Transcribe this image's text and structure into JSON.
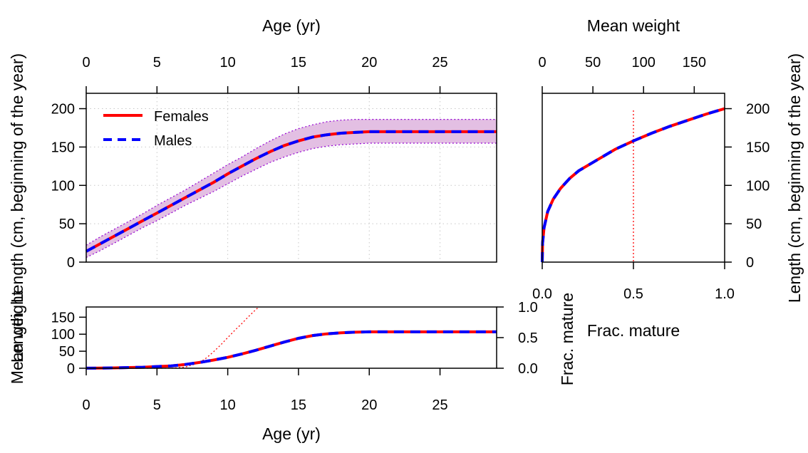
{
  "colors": {
    "females": "#ff0000",
    "males": "#0000ff",
    "band_fill": "#e3bfe3",
    "band_line": "#9400d3",
    "grid": "#c8c8c8"
  },
  "legend": {
    "females": "Females",
    "males": "Males"
  },
  "chart_data": [
    {
      "id": "length_at_age",
      "type": "line",
      "title": "",
      "xlabel_top": "Age (yr)",
      "ylabel_left": "Length (cm, beginning of the year)",
      "xlim": [
        0,
        29
      ],
      "ylim": [
        0,
        220
      ],
      "xticks": [
        "0",
        "5",
        "10",
        "15",
        "20",
        "25"
      ],
      "xtick_values": [
        0,
        5,
        10,
        15,
        20,
        25
      ],
      "yticks": [
        "0",
        "50",
        "100",
        "150",
        "200"
      ],
      "ytick_values": [
        0,
        50,
        100,
        150,
        200
      ],
      "grid": true,
      "legend_position": "top-left",
      "x": [
        0,
        1,
        2,
        3,
        4,
        5,
        6,
        7,
        8,
        9,
        10,
        11,
        12,
        13,
        14,
        15,
        16,
        17,
        18,
        19,
        20,
        21,
        22,
        23,
        24,
        25,
        26,
        27,
        28,
        29
      ],
      "series": [
        {
          "name": "Females",
          "values": [
            14,
            24,
            34,
            44,
            54,
            64,
            74,
            84,
            94,
            104,
            115,
            125,
            135,
            144,
            152,
            158,
            163,
            166,
            168,
            169,
            170,
            170,
            170,
            170,
            170,
            170,
            170,
            170,
            170,
            170
          ]
        },
        {
          "name": "Males",
          "values": [
            14,
            24,
            34,
            44,
            54,
            64,
            74,
            84,
            94,
            104,
            115,
            125,
            135,
            144,
            152,
            158,
            163,
            166,
            168,
            169,
            170,
            170,
            170,
            170,
            170,
            170,
            170,
            170,
            170,
            170
          ]
        }
      ],
      "band_upper": [
        22,
        33,
        43,
        53,
        63,
        74,
        84,
        94,
        105,
        116,
        127,
        137,
        148,
        158,
        167,
        174,
        179,
        183,
        185,
        186,
        186,
        186,
        186,
        186,
        186,
        186,
        186,
        186,
        186,
        186
      ],
      "band_lower": [
        6,
        15,
        25,
        35,
        45,
        54,
        64,
        74,
        83,
        92,
        102,
        112,
        121,
        130,
        137,
        143,
        148,
        151,
        153,
        154,
        155,
        155,
        155,
        155,
        155,
        155,
        155,
        155,
        155,
        155
      ]
    },
    {
      "id": "length_vs_maturity_weight",
      "type": "line",
      "title": "",
      "xlabel_top": "Mean weight",
      "xlabel_bottom": "Frac. mature",
      "ylabel_right": "Length (cm, beginning of the year)",
      "xlim_top": [
        0,
        180
      ],
      "xticks_top": [
        "0",
        "50",
        "100",
        "150"
      ],
      "xtick_top_values": [
        0,
        50,
        100,
        150
      ],
      "xlim_bottom": [
        0,
        1
      ],
      "xticks_bottom": [
        "0.0",
        "0.5",
        "1.0"
      ],
      "xtick_bottom_values": [
        0,
        0.5,
        1
      ],
      "ylim": [
        0,
        220
      ],
      "yticks": [
        "0",
        "50",
        "100",
        "150",
        "200"
      ],
      "ytick_values": [
        0,
        50,
        100,
        150,
        200
      ],
      "frac_mature_reference": 0.5,
      "x": [
        0,
        0.002,
        0.01,
        0.03,
        0.06,
        0.1,
        0.15,
        0.2,
        0.3,
        0.4,
        0.5,
        0.6,
        0.7,
        0.8,
        0.9,
        1.0
      ],
      "series": [
        {
          "name": "Females",
          "values": [
            0,
            25,
            45,
            66,
            82,
            96,
            109,
            119,
            133,
            147,
            158,
            168,
            177,
            185,
            193,
            200
          ]
        },
        {
          "name": "Males",
          "values": [
            0,
            25,
            45,
            66,
            82,
            96,
            109,
            119,
            133,
            147,
            158,
            168,
            177,
            185,
            193,
            200
          ]
        }
      ]
    },
    {
      "id": "weight_and_maturity_at_age",
      "type": "line",
      "title": "",
      "xlabel": "Age (yr)",
      "ylabel_left_a": "Mean weight",
      "ylabel_left_b": "Length",
      "ylabel_right": "Frac. mature",
      "xlim": [
        0,
        29
      ],
      "xticks": [
        "0",
        "5",
        "10",
        "15",
        "20",
        "25"
      ],
      "xtick_values": [
        0,
        5,
        10,
        15,
        20,
        25
      ],
      "ylim": [
        0,
        180
      ],
      "yticks": [
        "0",
        "50",
        "100",
        "150"
      ],
      "ytick_values": [
        0,
        50,
        100,
        150
      ],
      "ylim_right": [
        0,
        1
      ],
      "yticks_right": [
        "0.0",
        "0.5",
        "1.0"
      ],
      "ytick_right_values": [
        0,
        0.5,
        1
      ],
      "x": [
        0,
        1,
        2,
        3,
        4,
        5,
        6,
        7,
        8,
        9,
        10,
        11,
        12,
        13,
        14,
        15,
        16,
        17,
        18,
        19,
        20,
        21,
        22,
        23,
        24,
        25,
        26,
        27,
        28,
        29
      ],
      "series": [
        {
          "name": "Females",
          "values": [
            0.3,
            0.5,
            1,
            2,
            3,
            5,
            7,
            11,
            17,
            24,
            32,
            42,
            53,
            65,
            77,
            88,
            96,
            101,
            104,
            106,
            107,
            107,
            107,
            107,
            107,
            107,
            107,
            107,
            107,
            107
          ]
        },
        {
          "name": "Males",
          "values": [
            0.3,
            0.5,
            1,
            2,
            3,
            5,
            7,
            11,
            17,
            24,
            32,
            42,
            53,
            65,
            77,
            88,
            96,
            101,
            104,
            106,
            107,
            107,
            107,
            107,
            107,
            107,
            107,
            107,
            107,
            107
          ]
        }
      ],
      "maturity_x": [
        0,
        6,
        7,
        8,
        8.5,
        9,
        9.5,
        10,
        10.5,
        11,
        11.5,
        12,
        12.2
      ],
      "maturity_values": [
        0,
        0,
        0.02,
        0.09,
        0.17,
        0.27,
        0.38,
        0.5,
        0.62,
        0.73,
        0.85,
        0.96,
        1.0
      ]
    }
  ]
}
